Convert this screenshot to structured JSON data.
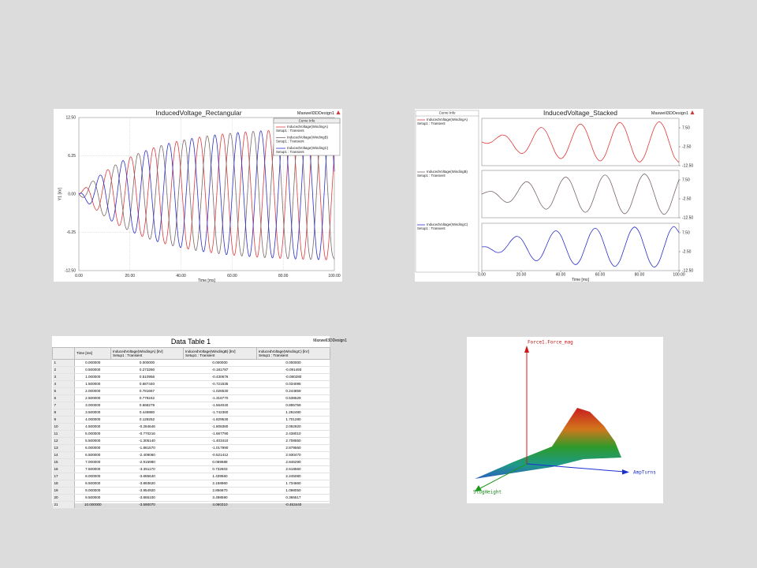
{
  "chart_data": [
    {
      "type": "line",
      "title": "InducedVoltage_Rectangular",
      "design": "Maxwell3DDesign1",
      "x_label": "Time [ms]",
      "y_label": "Y1 [kV]",
      "legend_title": "Curve Info",
      "legend": "upper right",
      "grid": true,
      "x": [
        0,
        1,
        2,
        3,
        4,
        5,
        6,
        7,
        8,
        9,
        10,
        11,
        12,
        13,
        14,
        15,
        16,
        17,
        18,
        19,
        20,
        21,
        22,
        23,
        24,
        25,
        26,
        27,
        28,
        29,
        30,
        31,
        32,
        33,
        34,
        35,
        36,
        37,
        38,
        39,
        40,
        41,
        42,
        43,
        44,
        45,
        46,
        47,
        48,
        49,
        50,
        51,
        52,
        53,
        54,
        55,
        56,
        57,
        58,
        59,
        60,
        61,
        62,
        63,
        64,
        65,
        66,
        67,
        68,
        69,
        70,
        71,
        72,
        73,
        74,
        75,
        76,
        77,
        78,
        79,
        80,
        81,
        82,
        83,
        84,
        85,
        86,
        87,
        88,
        89,
        90,
        91,
        92,
        93,
        94,
        95,
        96,
        97,
        98,
        99,
        100
      ],
      "xlim": [
        0,
        100
      ],
      "xticks": [
        {
          "value": 0,
          "label": "0.00"
        },
        {
          "value": 20,
          "label": "20.00"
        },
        {
          "value": 40,
          "label": "40.00"
        },
        {
          "value": 60,
          "label": "60.00"
        },
        {
          "value": 80,
          "label": "80.00"
        },
        {
          "value": 100,
          "label": "100.00"
        }
      ],
      "ylim": [
        -12.5,
        12.5
      ],
      "yticks": [
        {
          "value": 12.5,
          "label": "12.50"
        },
        6.25,
        {
          "value": 0,
          "label": "0.00"
        },
        -6.25,
        {
          "value": -12.5,
          "label": "-12.50"
        }
      ],
      "series": [
        {
          "name": "InducedVoltage(WindingA)",
          "setup": "Setup1 : Transient",
          "color": "#e0393a",
          "values": [
            0,
            0.28,
            0.83,
            1.08,
            0.56,
            -0.68,
            -2.03,
            -2.65,
            -1.94,
            0,
            2.33,
            3.86,
            3.63,
            1.53,
            -1.61,
            -4.3,
            -5.12,
            -3.49,
            0,
            3.76,
            5.97,
            5.41,
            2.2,
            -2.26,
            -5.88,
            -6.85,
            -4.57,
            0,
            4.77,
            7.44,
            6.66,
            2.67,
            -2.72,
            -6.98,
            -8.05,
            -5.33,
            0,
            5.46,
            8.47,
            7.52,
            3.0,
            -3.03,
            -7.75,
            -8.89,
            -5.86,
            0,
            5.95,
            9.18,
            8.13,
            3.23,
            -3.25,
            -8.29,
            -9.48,
            -6.22,
            0,
            6.29,
            9.68,
            8.55,
            3.39,
            -3.41,
            -8.66,
            -9.89,
            -6.48,
            0,
            6.53,
            10.03,
            8.85,
            3.5,
            -3.51,
            -8.92,
            -10.18,
            -6.66,
            0,
            6.69,
            10.27,
            9.05,
            3.58,
            -3.59,
            -9.1,
            -10.37,
            -6.78,
            0,
            6.81,
            10.45,
            9.2,
            3.64,
            -3.64,
            -9.24,
            -10.52,
            -6.87,
            0,
            6.89,
            10.56,
            9.29,
            3.67,
            -3.68,
            -9.32,
            -10.61,
            -6.93,
            0,
            6.94
          ]
        },
        {
          "name": "InducedVoltage(WindingB)",
          "setup": "Setup1 : Transient",
          "color": "#7a6666",
          "values": [
            0,
            -0.42,
            -0.54,
            0,
            1.05,
            1.96,
            2.03,
            0.92,
            -1.03,
            -2.88,
            -3.57,
            -2.52,
            0,
            2.87,
            4.65,
            4.3,
            1.78,
            -1.86,
            -4.89,
            -5.77,
            -3.89,
            0,
            4.14,
            6.52,
            5.88,
            2.38,
            -2.43,
            -6.29,
            -7.3,
            -4.86,
            0,
            5.03,
            7.82,
            6.98,
            2.8,
            -2.83,
            -7.27,
            -8.37,
            -5.53,
            0,
            5.64,
            8.73,
            7.75,
            3.09,
            -3.11,
            -7.95,
            -9.11,
            -5.99,
            0,
            6.08,
            9.37,
            8.29,
            3.29,
            -3.31,
            -8.43,
            -9.63,
            -6.32,
            0,
            6.38,
            9.81,
            8.66,
            3.43,
            -3.45,
            -8.76,
            -10.0,
            -6.55,
            0,
            6.59,
            10.12,
            8.92,
            3.53,
            -3.54,
            -8.99,
            -10.25,
            -6.71,
            0,
            6.73,
            10.33,
            9.1,
            3.6,
            -3.61,
            -9.15,
            -10.43,
            -6.82,
            0,
            6.84,
            10.49,
            9.24,
            3.65,
            -3.66,
            -9.27,
            -10.55,
            -6.89,
            0,
            6.91,
            10.59,
            9.32,
            3.68,
            -3.69,
            -9.34,
            -10.64
          ]
        },
        {
          "name": "InducedVoltage(WindingC)",
          "setup": "Setup1 : Transient",
          "color": "#2a2fc8",
          "values": [
            0,
            0.14,
            -0.29,
            -1.08,
            -1.61,
            -1.28,
            0,
            1.73,
            2.97,
            2.88,
            1.24,
            -1.34,
            -3.63,
            -4.4,
            -3.04,
            0,
            3.34,
            5.35,
            4.89,
            2.01,
            -2.08,
            -5.41,
            -6.34,
            -4.26,
            0,
            4.47,
            7.0,
            6.29,
            2.53,
            -2.58,
            -6.66,
            -7.7,
            -5.1,
            0,
            5.25,
            8.16,
            7.27,
            2.91,
            -2.94,
            -7.52,
            -8.64,
            -5.7,
            0,
            5.8,
            8.97,
            7.95,
            3.16,
            -3.19,
            -8.13,
            -9.31,
            -6.12,
            0,
            6.19,
            9.53,
            8.43,
            3.34,
            -3.36,
            -8.55,
            -9.77,
            -6.4,
            0,
            6.46,
            9.93,
            8.76,
            3.47,
            -3.48,
            -8.85,
            -10.09,
            -6.61,
            0,
            6.65,
            10.2,
            8.99,
            3.56,
            -3.56,
            -9.05,
            -10.31,
            -6.74,
            0,
            6.77,
            10.39,
            9.15,
            3.62,
            -3.63,
            -9.2,
            -10.48,
            -6.85,
            0,
            6.87,
            10.53,
            9.27,
            3.66,
            -3.67,
            -9.29,
            -10.58,
            -6.91,
            0,
            6.93,
            10.62,
            9.34,
            3.7
          ]
        }
      ]
    },
    {
      "type": "stacked",
      "title": "InducedVoltage_Stacked",
      "design": "Maxwell3DDesign1",
      "x_label": "Time [ms]",
      "legend_title": "Curve Info",
      "grid": false,
      "x": [
        0,
        2.5,
        5,
        7.5,
        10,
        12.5,
        15,
        17.5,
        20,
        22.5,
        25,
        27.5,
        30,
        32.5,
        35,
        37.5,
        40,
        42.5,
        45,
        47.5,
        50,
        52.5,
        55,
        57.5,
        60,
        62.5,
        65,
        67.5,
        70,
        72.5,
        75,
        77.5,
        80,
        82.5,
        85,
        87.5,
        90,
        92.5,
        95,
        97.5,
        100
      ],
      "xlim": [
        0,
        100
      ],
      "xticks": [
        {
          "value": 0,
          "label": "0.00"
        },
        {
          "value": 20,
          "label": "20.00"
        },
        {
          "value": 40,
          "label": "40.00"
        },
        {
          "value": 60,
          "label": "60.00"
        },
        {
          "value": 80,
          "label": "80.00"
        },
        {
          "value": 100,
          "label": "100.00"
        }
      ],
      "ylim": [
        -12.5,
        12.5
      ],
      "yticks": [
        {
          "value": 7.5,
          "label": "7.50"
        },
        {
          "value": -2.5,
          "label": "-2.50"
        },
        {
          "value": -12.5,
          "label": "-12.50"
        }
      ],
      "series": [
        {
          "name": "InducedVoltage(WindingA)",
          "setup": "Setup1 : Transient",
          "color": "#e0393a",
          "values": [
            0,
            -0.74,
            0,
            2.01,
            3.63,
            3.06,
            0,
            -3.92,
            -6.06,
            -4.62,
            0,
            5.19,
            7.69,
            5.66,
            0,
            -6.04,
            -8.78,
            -6.36,
            0,
            6.61,
            9.51,
            6.82,
            0,
            -7.0,
            -10.0,
            -7.14,
            0,
            7.25,
            10.33,
            7.35,
            0,
            -7.42,
            -10.55,
            -7.49,
            0,
            7.54,
            10.69,
            7.58,
            0,
            -7.61,
            -10.8
          ]
        },
        {
          "name": "InducedVoltage(WindingB)",
          "setup": "Setup1 : Transient",
          "color": "#7a6666",
          "values": [
            0,
            1.05,
            1.41,
            0,
            -2.57,
            -4.33,
            -3.51,
            0,
            4.28,
            6.53,
            4.91,
            0,
            -5.44,
            -8.0,
            -5.86,
            0,
            6.21,
            8.99,
            6.49,
            0,
            -6.72,
            -9.65,
            -6.91,
            0,
            7.07,
            10.1,
            7.2,
            0,
            -7.3,
            -10.4,
            -7.39,
            0,
            7.46,
            10.59,
            7.52,
            0,
            -7.56,
            -10.72,
            -7.59,
            0,
            7.64
          ]
        },
        {
          "name": "InducedVoltage(WindingC)",
          "setup": "Setup1 : Transient",
          "color": "#2a2fc8",
          "values": [
            0,
            0,
            -1.41,
            -2.85,
            -2.57,
            0,
            3.51,
            5.54,
            4.28,
            0,
            -4.91,
            -7.34,
            -5.44,
            0,
            5.86,
            8.55,
            6.21,
            0,
            -6.49,
            -9.35,
            -6.72,
            0,
            6.91,
            9.9,
            7.07,
            0,
            -7.2,
            -10.26,
            -7.3,
            0,
            7.39,
            10.5,
            7.46,
            0,
            -7.52,
            -10.66,
            -7.56,
            0,
            7.59,
            10.77,
            7.64
          ]
        }
      ]
    }
  ],
  "data_table": {
    "title": "Data Table 1",
    "design": "Maxwell3DDesign1",
    "columns": [
      {
        "name": "Time [ms]"
      },
      {
        "name": "InducedVoltage(WindingA) [kV]",
        "setup": "Setup1 : Transient"
      },
      {
        "name": "InducedVoltage(WindingB) [kV]",
        "setup": "Setup1 : Transient"
      },
      {
        "name": "InducedVoltage(WindingC) [kV]",
        "setup": "Setup1 : Transient"
      }
    ],
    "rows": [
      [
        "1",
        "0.000000",
        "0.000000",
        "0.000000",
        "0.000000"
      ],
      [
        "2",
        "0.500000",
        "0.273280",
        "-0.181787",
        "-0.091493"
      ],
      [
        "3",
        "1.000000",
        "0.510956",
        "-0.430676",
        "-0.080280"
      ],
      [
        "4",
        "1.500000",
        "0.687440",
        "-0.721535",
        "0.034095"
      ],
      [
        "5",
        "2.000000",
        "0.781667",
        "-1.026530",
        "0.244859"
      ],
      [
        "6",
        "2.500000",
        "0.778242",
        "-1.316770",
        "0.538529"
      ],
      [
        "7",
        "3.000000",
        "0.668279",
        "-1.564040",
        "0.895759"
      ],
      [
        "8",
        "3.500000",
        "0.449880",
        "-1.742360",
        "1.292480"
      ],
      [
        "9",
        "4.000000",
        "0.128252",
        "-1.829530",
        "1.701280"
      ],
      [
        "10",
        "4.500000",
        "-0.284646",
        "-1.808380",
        "2.092920"
      ],
      [
        "11",
        "5.000000",
        "-0.770216",
        "-1.667790",
        "2.438010"
      ],
      [
        "12",
        "5.500000",
        "-1.305140",
        "-1.403410",
        "2.708550"
      ],
      [
        "13",
        "6.000000",
        "-1.861570",
        "-1.017990",
        "2.879560"
      ],
      [
        "14",
        "6.500000",
        "-2.409060",
        "-0.521412",
        "2.930470"
      ],
      [
        "15",
        "7.000000",
        "-2.915980",
        "0.069688",
        "2.846290"
      ],
      [
        "16",
        "7.500000",
        "-3.351170",
        "0.732603",
        "2.618560"
      ],
      [
        "17",
        "8.000000",
        "-3.685640",
        "1.439560",
        "2.245080"
      ],
      [
        "18",
        "8.500000",
        "-3.893620",
        "2.158960",
        "1.734660"
      ],
      [
        "19",
        "9.000000",
        "-3.954920",
        "2.856870",
        "1.098050"
      ],
      [
        "20",
        "9.500000",
        "-3.865100",
        "3.498590",
        "0.366517"
      ],
      [
        "21",
        "10.000000",
        "-3.590070",
        "4.060310",
        "-0.463440"
      ]
    ]
  },
  "surface_plot": {
    "z_label": "Force1.Force_mag",
    "x_label": "AmpTurns",
    "y_label": "SlugHeight"
  }
}
